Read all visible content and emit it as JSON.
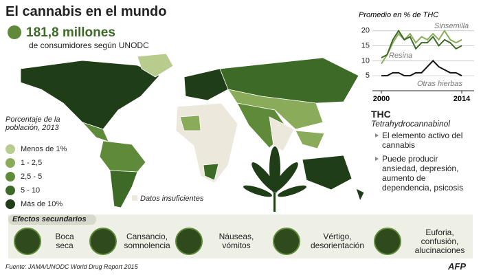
{
  "header": {
    "title": "El cannabis en el mundo",
    "count": "181,8 millones",
    "count_note": "de consumidores según UNODC"
  },
  "chart_data": {
    "type": "line",
    "title": "Promedio en % de THC",
    "x": [
      2000,
      2001,
      2002,
      2003,
      2004,
      2005,
      2006,
      2007,
      2008,
      2009,
      2010,
      2011,
      2012,
      2013,
      2014
    ],
    "series": [
      {
        "name": "Sinsemilla",
        "color": "#8aab5a",
        "values": [
          9,
          12,
          16,
          19,
          17,
          19,
          16,
          18,
          17,
          19,
          17,
          20,
          17,
          16,
          17
        ]
      },
      {
        "name": "Resina",
        "color": "#3d6a27",
        "values": [
          11,
          12,
          17,
          20,
          17,
          18,
          14,
          16,
          16,
          18,
          15,
          17,
          16,
          14,
          15
        ]
      },
      {
        "name": "Otras hierbas",
        "color": "#111111",
        "values": [
          5,
          5,
          6,
          6,
          5,
          5,
          6,
          6,
          8,
          10,
          8,
          7,
          6,
          6,
          5
        ]
      }
    ],
    "xlim": [
      2000,
      2014
    ],
    "xticks": [
      2000,
      2014
    ],
    "ylim": [
      0,
      22
    ],
    "yticks": [
      5,
      10,
      15,
      20
    ],
    "grid": true
  },
  "thc": {
    "title": "THC",
    "subtitle": "Tetrahydrocannabinol",
    "bullets": [
      "El elemento activo del cannabis",
      "Puede producir ansiedad, depresión, aumento de dependencia, psicosis"
    ]
  },
  "legend": {
    "title": "Porcentaje de la población, 2013",
    "items": [
      {
        "label": "Menos de 1%",
        "color": "#b8cc8e"
      },
      {
        "label": "1 - 2,5",
        "color": "#8aab5a"
      },
      {
        "label": "2,5 - 5",
        "color": "#5f8a3a"
      },
      {
        "label": "5 - 10",
        "color": "#3d6a27"
      },
      {
        "label": "Más de 10%",
        "color": "#1f3d17"
      }
    ],
    "no_data": "Datos insuficientes",
    "no_data_color": "#ece8dc"
  },
  "effects": {
    "title": "Efectos secundarios",
    "items": [
      "Boca seca",
      "Cansancio, somnolencia",
      "Náuseas, vómitos",
      "Vértigo, desorientación",
      "Euforia, confusión, alucinaciones"
    ]
  },
  "footer": {
    "source": "Fuente: JAMA/UNODC World Drug Report 2015",
    "credit": "AFP"
  }
}
